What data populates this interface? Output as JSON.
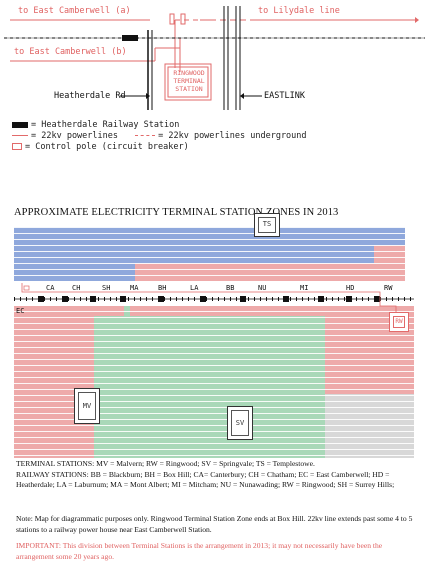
{
  "top_diagram": {
    "to_east_camberwell_a": "to East Camberwell (a)",
    "to_lilydale": "to Lilydale line",
    "to_east_camberwell_b": "to East Camberwell (b)",
    "station_label_line1": "RINGWOOD",
    "station_label_line2": "TERMINAL",
    "station_label_line3": "STATION",
    "heatherdale_rd": "Heatherdale Rd",
    "eastlink": "EASTLINK"
  },
  "legend": {
    "railway_station": "= Heatherdale Railway Station",
    "powerlines": "= 22kv powerlines",
    "powerlines_underground": "= 22kv powerlines underground",
    "control_pole": "= Control pole (circuit breaker)"
  },
  "map": {
    "title": "APPROXIMATE ELECTRICITY TERMINAL STATION ZONES IN 2013",
    "stations": [
      "CA",
      "CH",
      "SH",
      "MA",
      "BH",
      "LA",
      "BB",
      "NU",
      "MI",
      "HD",
      "RW"
    ],
    "ec_label": "EC",
    "zones": {
      "ts": "TS",
      "rw": "RW",
      "mv": "MV",
      "sv": "SV"
    },
    "colors": {
      "blue": "#8fa8dc",
      "pink": "#eeaaaa",
      "green": "#a9d8b8",
      "grey": "#d8d8d8"
    }
  },
  "notes": {
    "terminal_stations": "TERMINAL STATIONS: MV = Malvern; RW = Ringwood; SV = Springvale; TS = Templestowe.",
    "railway_stations": "RAILWAY STATIONS: BB = Blackburn; BH = Box Hill; CA= Canterbury; CH = Chatham; EC = East Camberwell; HD = Heatherdale; LA = Laburnum; MA = Mont Albert; MI = Mitcham; NU = Nunawading; RW = Ringwood; SH = Surrey Hills;",
    "map_note": "Note: Map for diagrammatic purposes only.  Ringwood Terminal Station Zone ends at Box Hill.  22kv line extends past some 4 to 5 stations to a railway power house near East Camberwell Station.",
    "important": "IMPORTANT: This division between Terminal Stations is the arrangement in 2013; it may not necessarily have been the arrangement some 20 years ago."
  }
}
